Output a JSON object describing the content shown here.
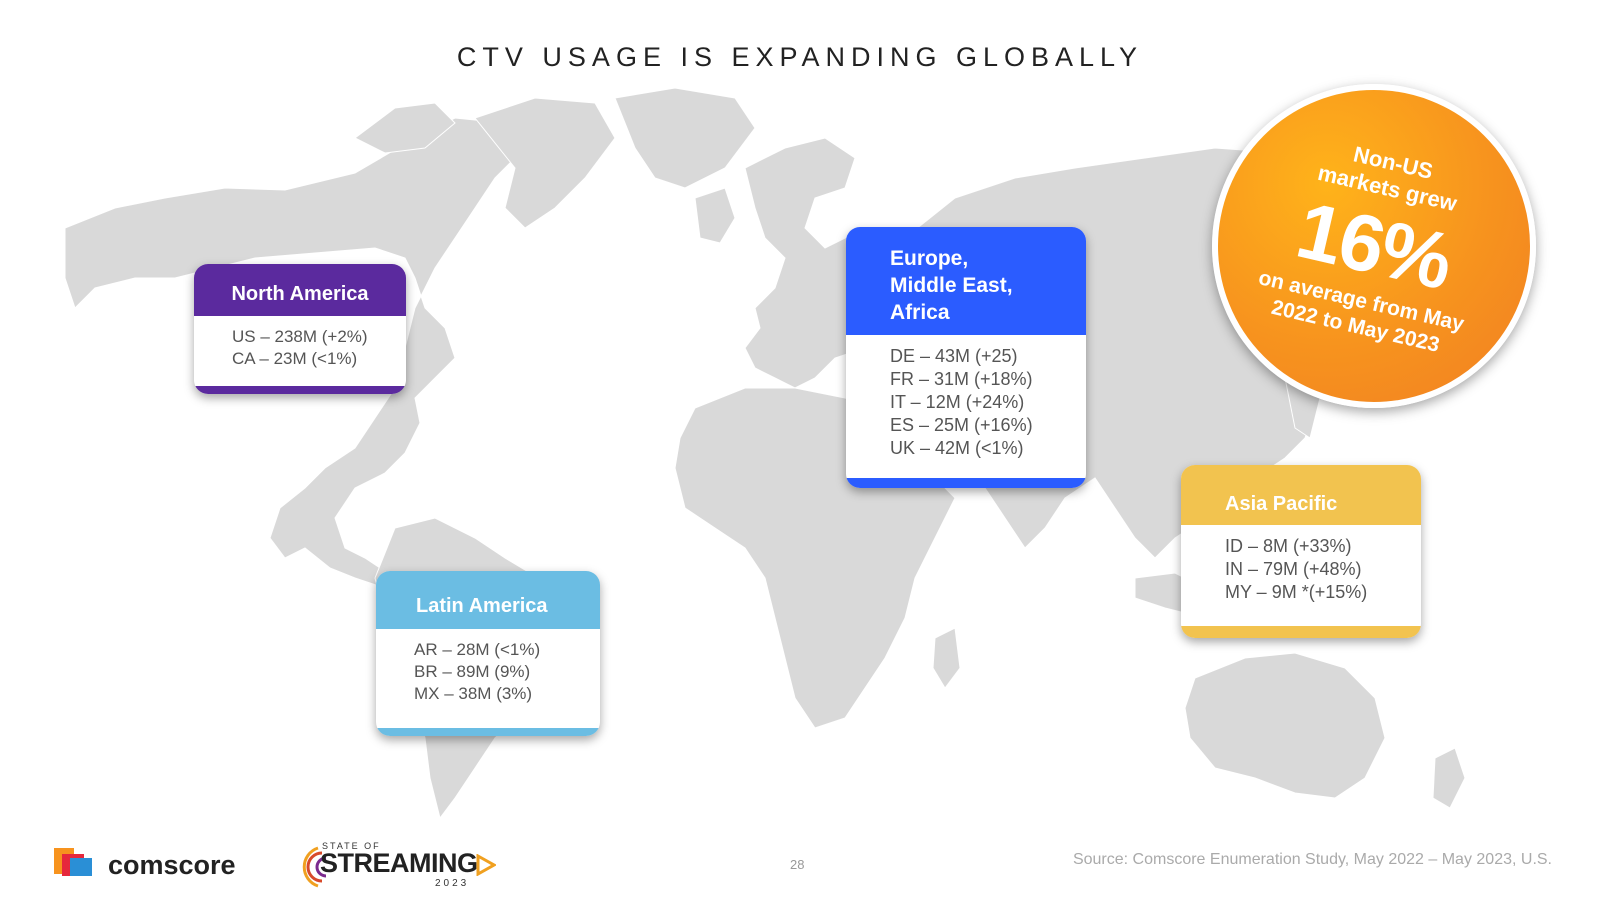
{
  "title": "CTV USAGE IS EXPANDING GLOBALLY",
  "regions": {
    "north_america": {
      "header": "North America",
      "lines": [
        "US – 238M (+2%)",
        "CA – 23M (<1%)"
      ],
      "color": "#5b2a9e"
    },
    "emea": {
      "header_lines": [
        "Europe,",
        "Middle East,",
        "Africa"
      ],
      "lines": [
        "DE – 43M (+25)",
        "FR – 31M (+18%)",
        "IT – 12M (+24%)",
        "ES – 25M (+16%)",
        "UK – 42M (<1%)"
      ],
      "color": "#2b5cff"
    },
    "latin_america": {
      "header": "Latin America",
      "lines": [
        "AR – 28M (<1%)",
        "BR – 89M (9%)",
        "MX – 38M (3%)"
      ],
      "color": "#6bbde3"
    },
    "asia_pacific": {
      "header": "Asia Pacific",
      "lines": [
        "ID – 8M (+33%)",
        "IN – 79M (+48%)",
        "MY – 9M *(+15%)"
      ],
      "color": "#f2c34f"
    }
  },
  "badge": {
    "line1": "Non-US",
    "line2": "markets grew",
    "value": "16%",
    "line3": "on average from May",
    "line4": "2022 to May 2023"
  },
  "footer": {
    "comscore_logo": "comscore",
    "sos_top": "STATE OF",
    "sos_main": "STREAMING",
    "sos_year": "2023",
    "page_number": "28",
    "source": "Source: Comscore Enumeration Study, May 2022 – May 2023, U.S."
  }
}
